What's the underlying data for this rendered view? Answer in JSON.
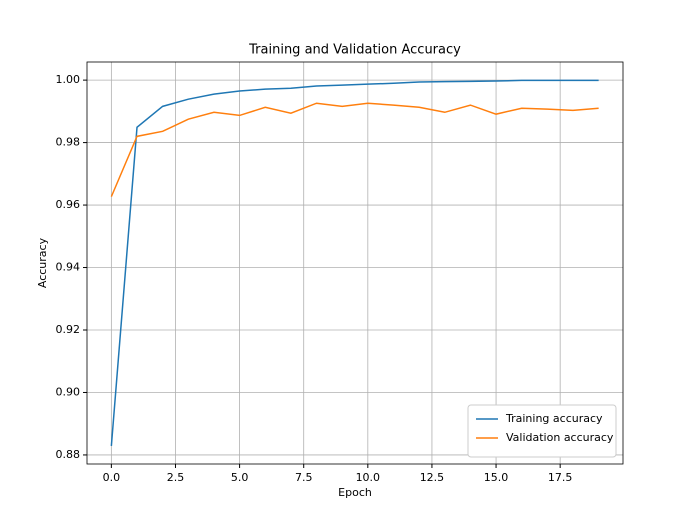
{
  "chart_data": {
    "type": "line",
    "title": "Training and Validation Accuracy",
    "x_label": "Epoch",
    "y_label": "Accuracy",
    "x": [
      0,
      1,
      2,
      3,
      4,
      5,
      6,
      7,
      8,
      9,
      10,
      11,
      12,
      13,
      14,
      15,
      16,
      17,
      18,
      19
    ],
    "series": [
      {
        "name": "Training accuracy",
        "color": "#1f77b4",
        "values": [
          0.8829,
          0.9849,
          0.9916,
          0.9939,
          0.9955,
          0.9965,
          0.9971,
          0.9974,
          0.9981,
          0.9984,
          0.9987,
          0.999,
          0.9994,
          0.9995,
          0.9996,
          0.9997,
          0.9999,
          0.9999,
          0.9999,
          0.9999
        ]
      },
      {
        "name": "Validation accuracy",
        "color": "#ff7f0e",
        "values": [
          0.9627,
          0.982,
          0.9836,
          0.9875,
          0.9897,
          0.9887,
          0.9913,
          0.9894,
          0.9926,
          0.9916,
          0.9926,
          0.992,
          0.9913,
          0.9897,
          0.992,
          0.9891,
          0.991,
          0.9907,
          0.9903,
          0.991
        ]
      }
    ],
    "xlim": [
      -0.95,
      19.95
    ],
    "ylim": [
      0.8771,
      1.0058
    ],
    "xticks": [
      {
        "value": 0,
        "label": "0.0"
      },
      2.5,
      {
        "value": 5,
        "label": "5.0"
      },
      7.5,
      {
        "value": 10,
        "label": "10.0"
      },
      12.5,
      {
        "value": 15,
        "label": "15.0"
      },
      17.5
    ],
    "yticks": [
      0.88,
      {
        "value": 0.9,
        "label": "0.90"
      },
      0.92,
      0.94,
      0.96,
      0.98,
      {
        "value": 1,
        "label": "1.00"
      }
    ],
    "grid": true,
    "legend": "lower right"
  }
}
